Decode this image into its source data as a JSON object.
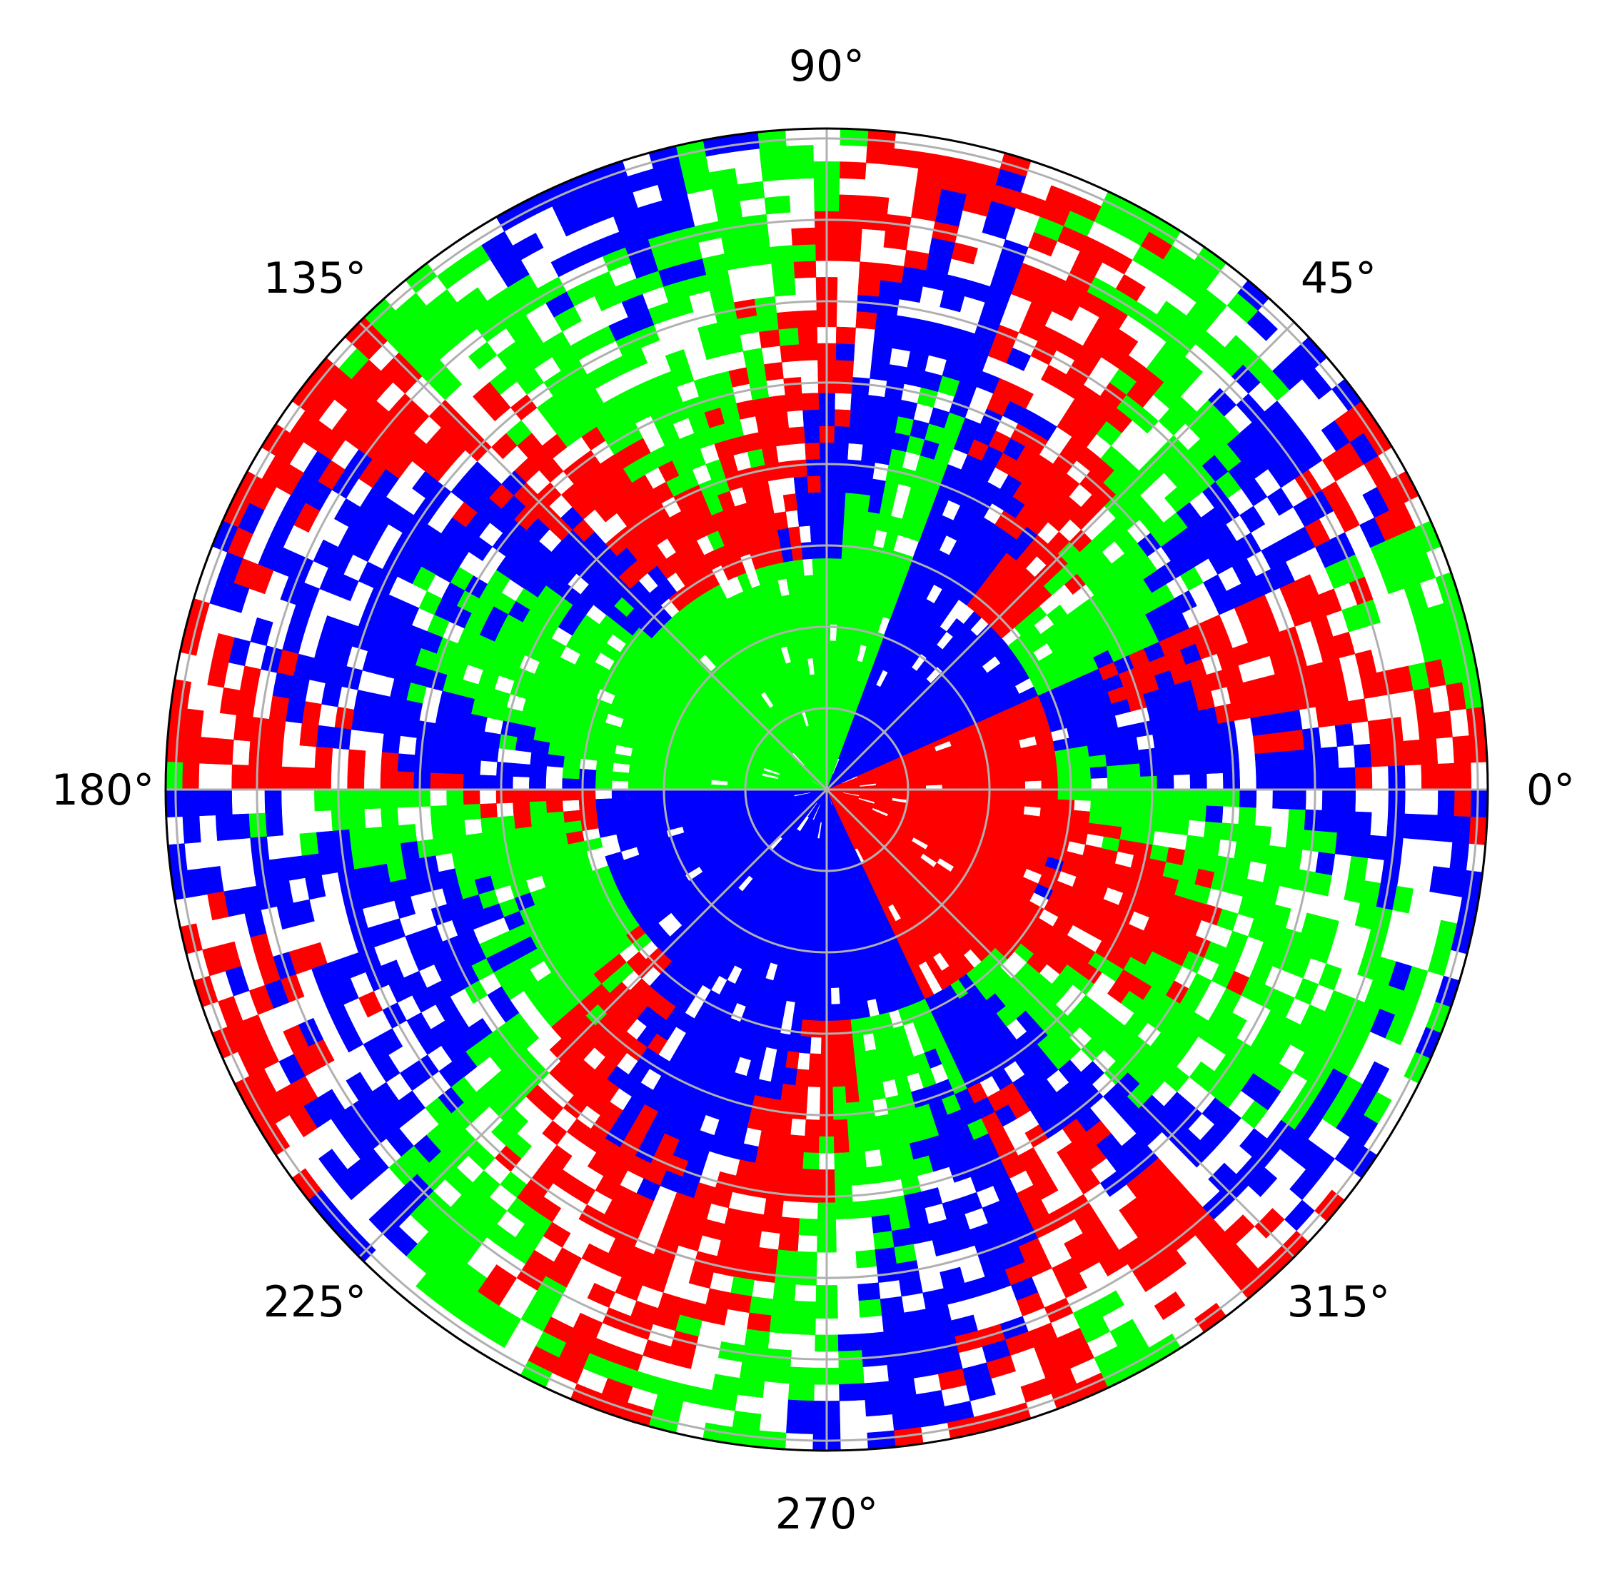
{
  "chart_data": {
    "type": "heatmap",
    "projection": "polar",
    "title": "",
    "angular_tick_labels": [
      "0°",
      "45°",
      "90°",
      "135°",
      "180°",
      "225°",
      "270°",
      "315°"
    ],
    "angular_ticks_deg": [
      0,
      45,
      90,
      135,
      180,
      225,
      270,
      315
    ],
    "radial_grid_rings": 8,
    "radial_tick_labels_shown": false,
    "grid": true,
    "colormap": [
      "#ff0000",
      "#00ff00",
      "#0000ff"
    ],
    "background_color": "#ffffff",
    "pattern_description": "Filled contour bands in red, green and blue arranged in sectors around the origin with noisy white gaps increasing toward the outer rim.",
    "inner_sectors_deg": [
      {
        "from": 0,
        "to": 25,
        "color": "#ff0000"
      },
      {
        "from": 25,
        "to": 70,
        "color": "#0000ff"
      },
      {
        "from": 70,
        "to": 110,
        "color": "#00ff00"
      },
      {
        "from": 110,
        "to": 150,
        "color": "#00ff00"
      },
      {
        "from": 150,
        "to": 180,
        "color": "#00ff00"
      },
      {
        "from": 180,
        "to": 250,
        "color": "#0000ff"
      },
      {
        "from": 250,
        "to": 295,
        "color": "#0000ff"
      },
      {
        "from": 295,
        "to": 360,
        "color": "#ff0000"
      }
    ]
  }
}
